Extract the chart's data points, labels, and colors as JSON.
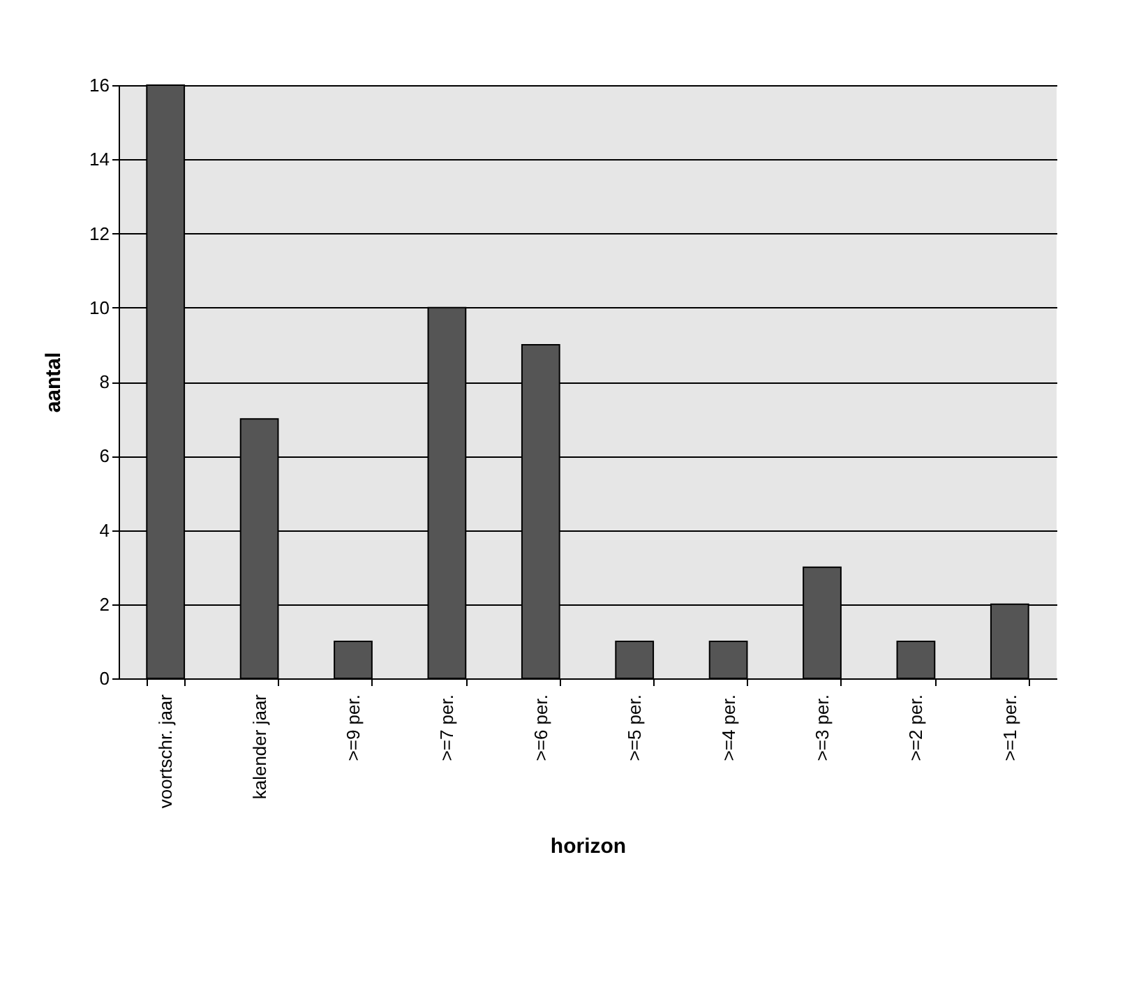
{
  "chart_data": {
    "type": "bar",
    "xlabel": "horizon",
    "ylabel": "aantal",
    "categories": [
      "voortschr. jaar",
      "kalender jaar",
      ">=9 per.",
      ">=7 per.",
      ">=6 per.",
      ">=5 per.",
      ">=4 per.",
      ">=3 per.",
      ">=2 per.",
      ">=1 per."
    ],
    "values": [
      16,
      7,
      1,
      10,
      9,
      1,
      1,
      3,
      1,
      2
    ],
    "color": "#555555",
    "ylim": [
      0,
      16
    ],
    "yticks": [
      0,
      2,
      4,
      6,
      8,
      10,
      12,
      14,
      16
    ],
    "grid": "y"
  }
}
